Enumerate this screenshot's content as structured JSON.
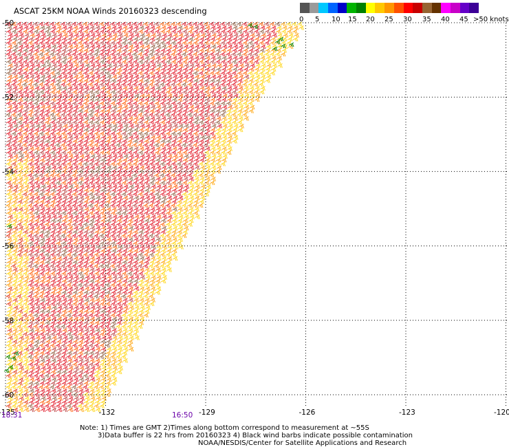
{
  "title": "ASCAT 25KM NOAA Winds 20160323 descending",
  "colorbar": {
    "colors": [
      "#555555",
      "#9a9a9a",
      "#00c8ff",
      "#0064ff",
      "#0000c8",
      "#00b400",
      "#008000",
      "#ffff00",
      "#ffc800",
      "#ff9600",
      "#ff5000",
      "#ff0000",
      "#c80000",
      "#966432",
      "#643200",
      "#ff00ff",
      "#c800c8",
      "#6400c8",
      "#3c0096"
    ],
    "labels": [
      "0",
      "5",
      "10",
      "15",
      "20",
      "25",
      "30",
      "35",
      "40",
      "45",
      ">50 knots"
    ]
  },
  "lat_labels": [
    "-50",
    "-52",
    "-54",
    "-56",
    "-58",
    "-60"
  ],
  "lon_labels": [
    "-135",
    "-132",
    "-129",
    "-126",
    "-123",
    "-120"
  ],
  "times": [
    "18:31",
    "16:50"
  ],
  "notes": [
    "Note: 1) Times are GMT 2)Times along bottom correspond to measurement at ~55S",
    "3)Data buffer is 22 hrs from 20160323 4) Black wind barbs indicate possible contamination",
    "NOAA/NESDIS/Center for Satellite Applications and Research"
  ]
}
